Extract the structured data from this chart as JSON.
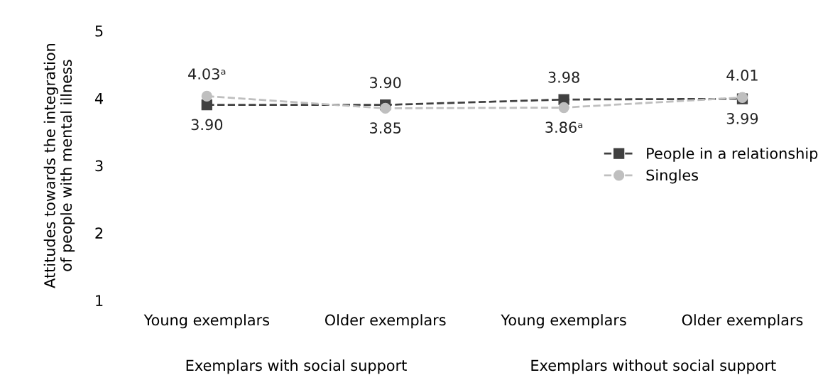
{
  "chart_data": {
    "type": "line",
    "ylabel": "Attitudes towards the integration\nof people with mental illness",
    "categories": [
      "Young exemplars",
      "Older exemplars",
      "Young exemplars",
      "Older exemplars"
    ],
    "series": [
      {
        "name": "People in a relationship",
        "color": "#404040",
        "marker": "square",
        "line_style": "dashed",
        "values": [
          3.9,
          3.9,
          3.98,
          3.99
        ],
        "value_labels": [
          "3.90",
          "3.90",
          "3.98",
          "3.99"
        ]
      },
      {
        "name": "Singles",
        "color": "#bfbfbf",
        "marker": "circle",
        "line_style": "dashed",
        "values": [
          4.03,
          3.85,
          3.86,
          4.01
        ],
        "value_labels": [
          "4.03ᵃ",
          "3.85",
          "3.86ᵃ",
          "4.01"
        ]
      }
    ],
    "ylim": [
      1,
      5
    ],
    "yticks": [
      1,
      2,
      3,
      4,
      5
    ],
    "grid": false,
    "legend": "right",
    "annotations": [
      "Exemplars with social support",
      "Exemplars without social support"
    ]
  }
}
